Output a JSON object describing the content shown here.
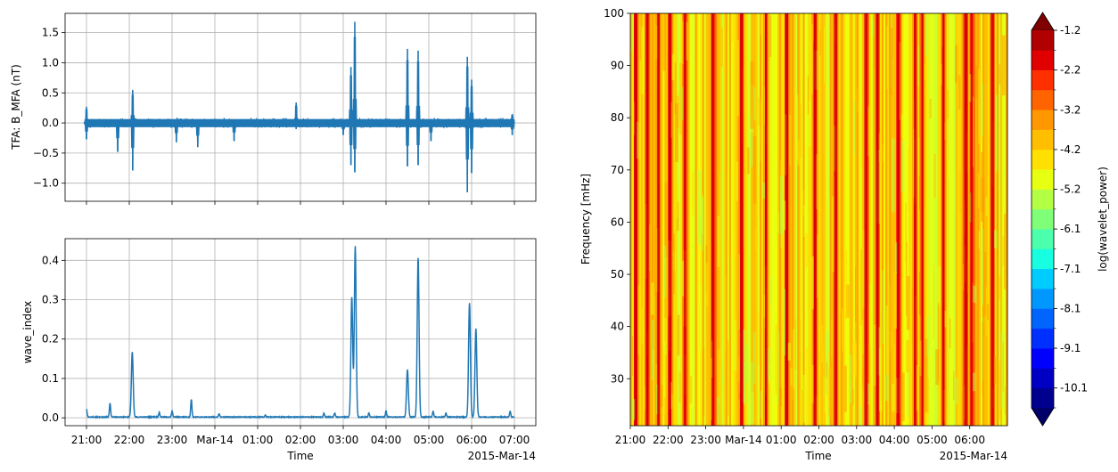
{
  "chart_data": [
    {
      "type": "line",
      "ylabel": "TFA: B_MFA (nT)",
      "ylim": [
        -1.3,
        1.82
      ],
      "yticks": [
        -1.0,
        -0.5,
        0.0,
        0.5,
        1.0,
        1.5
      ],
      "ytick_labels": [
        "−1.0",
        "−0.5",
        "0.0",
        "0.5",
        "1.0",
        "1.5"
      ],
      "x_range_hours": [
        -3.5,
        7.5
      ],
      "grid": true,
      "color": "#1f77b4",
      "spikes": [
        {
          "t": -3.0,
          "hi": 0.27,
          "lo": -0.27
        },
        {
          "t": -2.27,
          "hi": 0.05,
          "lo": -0.48
        },
        {
          "t": -1.92,
          "hi": 0.55,
          "lo": -0.79
        },
        {
          "t": -0.9,
          "hi": 0.05,
          "lo": -0.32
        },
        {
          "t": -0.4,
          "hi": 0.05,
          "lo": -0.4
        },
        {
          "t": 0.45,
          "hi": 0.05,
          "lo": -0.3
        },
        {
          "t": 1.9,
          "hi": 0.34,
          "lo": -0.1
        },
        {
          "t": 3.0,
          "hi": 0.02,
          "lo": -0.2
        },
        {
          "t": 3.18,
          "hi": 0.93,
          "lo": -0.7
        },
        {
          "t": 3.27,
          "hi": 1.68,
          "lo": -0.82
        },
        {
          "t": 4.5,
          "hi": 1.23,
          "lo": -0.72
        },
        {
          "t": 4.75,
          "hi": 1.2,
          "lo": -0.7
        },
        {
          "t": 5.05,
          "hi": 0.05,
          "lo": -0.3
        },
        {
          "t": 5.9,
          "hi": 1.1,
          "lo": -1.15
        },
        {
          "t": 6.0,
          "hi": 0.72,
          "lo": -0.83
        },
        {
          "t": 6.95,
          "hi": 0.15,
          "lo": -0.2
        }
      ]
    },
    {
      "type": "line",
      "ylabel": "wave_index",
      "xlabel": "Time",
      "ylim": [
        -0.02,
        0.455
      ],
      "yticks": [
        0.0,
        0.1,
        0.2,
        0.3,
        0.4
      ],
      "ytick_labels": [
        "0.0",
        "0.1",
        "0.2",
        "0.3",
        "0.4"
      ],
      "x_range_hours": [
        -3.5,
        7.5
      ],
      "xticks": [
        -3,
        -2,
        -1,
        0,
        1,
        2,
        3,
        4,
        5,
        6,
        7
      ],
      "xtick_labels": [
        "21:00",
        "22:00",
        "23:00",
        "Mar-14",
        "01:00",
        "02:00",
        "03:00",
        "04:00",
        "05:00",
        "06:00",
        "07:00"
      ],
      "x_offset_label": "2015-Mar-14",
      "grid": true,
      "color": "#1f77b4",
      "peaks": [
        {
          "t": -3.0,
          "v": 0.02
        },
        {
          "t": -2.45,
          "v": 0.035
        },
        {
          "t": -1.93,
          "v": 0.165
        },
        {
          "t": -1.3,
          "v": 0.012
        },
        {
          "t": -1.0,
          "v": 0.015
        },
        {
          "t": -0.55,
          "v": 0.045
        },
        {
          "t": 0.1,
          "v": 0.008
        },
        {
          "t": 1.18,
          "v": 0.005
        },
        {
          "t": 2.55,
          "v": 0.01
        },
        {
          "t": 2.8,
          "v": 0.01
        },
        {
          "t": 3.2,
          "v": 0.305
        },
        {
          "t": 3.28,
          "v": 0.435
        },
        {
          "t": 3.6,
          "v": 0.01
        },
        {
          "t": 4.0,
          "v": 0.015
        },
        {
          "t": 4.5,
          "v": 0.12
        },
        {
          "t": 4.75,
          "v": 0.405
        },
        {
          "t": 5.1,
          "v": 0.015
        },
        {
          "t": 5.4,
          "v": 0.01
        },
        {
          "t": 5.95,
          "v": 0.29
        },
        {
          "t": 6.1,
          "v": 0.225
        },
        {
          "t": 6.9,
          "v": 0.015
        }
      ]
    },
    {
      "type": "heatmap",
      "xlabel": "Time",
      "ylabel": "Frequency [mHz]",
      "ylim": [
        21,
        100
      ],
      "yticks": [
        30,
        40,
        50,
        60,
        70,
        80,
        90,
        100
      ],
      "ytick_labels": [
        "30",
        "40",
        "50",
        "60",
        "70",
        "80",
        "90",
        "100"
      ],
      "x_range_hours": [
        -3,
        7
      ],
      "xticks": [
        -3,
        -2,
        -1,
        0,
        1,
        2,
        3,
        4,
        5,
        6
      ],
      "xtick_labels": [
        "21:00",
        "22:00",
        "23:00",
        "Mar-14",
        "01:00",
        "02:00",
        "03:00",
        "04:00",
        "05:00",
        "06:00"
      ],
      "x_offset_label": "2015-Mar-14",
      "strong_bands_hours": [
        -2.85,
        -2.55,
        -2.25,
        -1.95,
        -1.55,
        -0.8,
        -0.05,
        0.6,
        1.15,
        1.9,
        2.45,
        3.25,
        3.55,
        4.1,
        4.55,
        4.75,
        5.3,
        5.9,
        6.05,
        6.6
      ],
      "colorbar": {
        "label": "log(wavelet_power)",
        "tick_labels": [
          "-1.2",
          "-2.2",
          "-3.2",
          "-4.2",
          "-5.2",
          "-6.1",
          "-7.1",
          "-8.1",
          "-9.1",
          "-10.1"
        ],
        "colors": [
          "#00008f",
          "#0000c4",
          "#0000ff",
          "#0030ff",
          "#0064ff",
          "#0098ff",
          "#00ccff",
          "#17ffe0",
          "#4bffac",
          "#7fff78",
          "#b3ff44",
          "#e7ff10",
          "#ffe000",
          "#ffbf00",
          "#ff9800",
          "#ff6400",
          "#ff3000",
          "#e00000",
          "#b00000"
        ],
        "under_color": "#00006b",
        "over_color": "#800000"
      }
    }
  ]
}
